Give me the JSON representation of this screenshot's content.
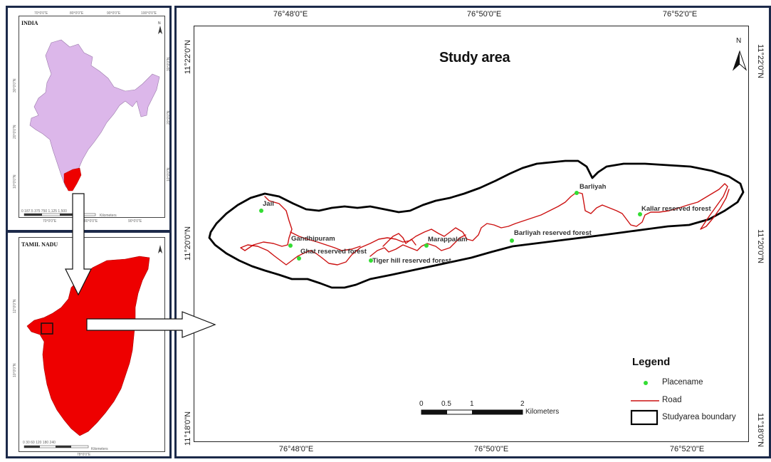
{
  "inset_india": {
    "title": "INDIA",
    "scale_ticks": "0  187.5 375   750    1,125    1,500",
    "scale_unit": "Kilometers",
    "top_ticks": [
      "70°0'0\"E",
      "80°0'0\"E",
      "90°0'0\"E",
      "100°0'0\"E"
    ],
    "bottom_ticks": [
      "70°0'0\"E",
      "80°0'0\"E",
      "90°0'0\"E"
    ],
    "left_ticks": [
      "30°0'0\"N",
      "20°0'0\"N",
      "10°0'0\"N"
    ],
    "right_ticks": [
      "30°0'0\"N",
      "20°0'0\"N",
      "10°0'0\"N"
    ],
    "country_color": "#dcb7ea",
    "state_color": "#ee0000"
  },
  "inset_tamilnadu": {
    "title": "TAMIL NADU",
    "scale_ticks": "0  30  60    120     180     240",
    "scale_unit": "Kilometers",
    "bottom_ticks": [
      "78°0'0\"E"
    ],
    "left_ticks": [
      "12°0'0\"N",
      "10°0'0\"N"
    ],
    "state_color": "#ee0000"
  },
  "main_map": {
    "title": "Study area",
    "north_label": "N",
    "top_coords": [
      "76°48'0\"E",
      "76°50'0\"E",
      "76°52'0\"E"
    ],
    "bottom_coords": [
      "76°48'0\"E",
      "76°50'0\"E",
      "76°52'0\"E"
    ],
    "left_coords": [
      "11°22'0\"N",
      "11°20'0\"N",
      "11°18'0\"N"
    ],
    "right_coords": [
      "11°22'0\"N",
      "11°20'0\"N",
      "11°18'0\"N"
    ],
    "places": [
      {
        "name": "Jail"
      },
      {
        "name": "Gandhipuram"
      },
      {
        "name": "Ghat reserved forest"
      },
      {
        "name": "Tiger hill reserved forest"
      },
      {
        "name": "Marappalam"
      },
      {
        "name": "Barliyah reserved forest"
      },
      {
        "name": "Barliyah"
      },
      {
        "name": "Kallar reserved forest"
      }
    ],
    "road_color": "#cc1111",
    "place_color": "#33dd33",
    "boundary_color": "#000000"
  },
  "legend": {
    "title": "Legend",
    "items": [
      {
        "label": "Placename",
        "symbol": "point"
      },
      {
        "label": "Road",
        "symbol": "line"
      },
      {
        "label": "Studyarea boundary",
        "symbol": "polygon"
      }
    ]
  },
  "scale_bar": {
    "ticks": [
      "0",
      "0.5",
      "1",
      "2"
    ],
    "unit": "Kilometers"
  }
}
